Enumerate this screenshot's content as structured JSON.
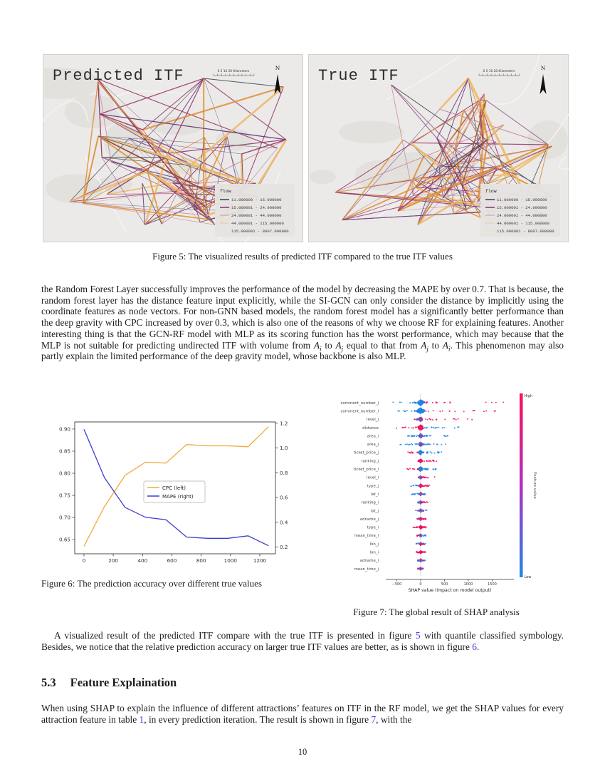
{
  "page": {
    "number": "10"
  },
  "link_color": "#3d3bde",
  "figure5": {
    "caption": "Figure 5: The visualized results of predicted ITF compared to the true ITF values",
    "panels": [
      {
        "title": "Predicted ITF"
      },
      {
        "title": "True ITF"
      }
    ],
    "scalebar_label": "0  5  10        20 Kilometers",
    "north_label": "N",
    "legend": {
      "title": "flow",
      "items": [
        {
          "label": "11.000000 - 15.000000",
          "color": "#4b4852"
        },
        {
          "label": "15.000001 - 24.000000",
          "color": "#7c4080"
        },
        {
          "label": "24.000001 - 44.000000",
          "color": "#d49396"
        },
        {
          "label": "44.000001 - 115.000000",
          "color": "#eec994"
        },
        {
          "label": "115.000001 - 8007.000000",
          "color": "#f3dfae"
        }
      ]
    },
    "line_palette": [
      {
        "color": "#45424e",
        "w": 0.7,
        "weight": 0.2
      },
      {
        "color": "#6f3d85",
        "w": 0.9,
        "weight": 0.22
      },
      {
        "color": "#99356b",
        "w": 1.1,
        "weight": 0.2
      },
      {
        "color": "#c87f92",
        "w": 0.8,
        "weight": 0.12
      },
      {
        "color": "#e0913a",
        "w": 1.6,
        "weight": 0.16
      },
      {
        "color": "#f0b96a",
        "w": 2.4,
        "weight": 0.1
      }
    ]
  },
  "paragraph1": {
    "segments": [
      {
        "t": "the Random Forest Layer successfully improves the performance of the model by decreasing the MAPE by over 0.7. That is because, the random forest layer has the distance feature input explicitly, while the SI-GCN can only consider the distance by implicitly using the coordinate features as node vectors. For non-GNN based models, the random forest model has a significantly better performance than the deep gravity with CPC increased by over 0.3, which is also one of the reasons of why we choose RF for explaining features. Another interesting thing is that the GCN-RF model with MLP as its scoring function has the worst performance, which may because that the MLP is not suitable for predicting undirected ITF with volume from "
      },
      {
        "t": "A",
        "sub": "i",
        "type": "var"
      },
      {
        "t": " to "
      },
      {
        "t": "A",
        "sub": "j",
        "type": "var"
      },
      {
        "t": " equal to that from "
      },
      {
        "t": "A",
        "sub": "j",
        "type": "var"
      },
      {
        "t": " to "
      },
      {
        "t": "A",
        "sub": "i",
        "type": "var"
      },
      {
        "t": ". This phenomenon may also partly explain the limited performance of the deep gravity model, whose backbone is also MLP."
      }
    ]
  },
  "figure6": {
    "caption": "Figure 6: The prediction accuracy over different true values"
  },
  "figure7": {
    "caption": "Figure 7: The global result of SHAP analysis"
  },
  "paragraph2": {
    "segments": [
      {
        "t": "A visualized result of the predicted ITF compare with the true ITF is presented in figure "
      },
      {
        "t": "5",
        "type": "link"
      },
      {
        "t": " with quantile classified symbology. Besides, we notice that the relative prediction accuracy on larger true ITF values are better, as is shown in figure "
      },
      {
        "t": "6",
        "type": "link"
      },
      {
        "t": "."
      }
    ]
  },
  "section": {
    "number": "5.3",
    "title": "Feature Explaination"
  },
  "paragraph3": {
    "segments": [
      {
        "t": "When using SHAP to explain the influence of different attractions’ features on ITF in the RF model, we get the SHAP values for every attraction feature in table "
      },
      {
        "t": "1",
        "type": "link"
      },
      {
        "t": ", in every prediction iteration.  The result is shown in figure "
      },
      {
        "t": "7",
        "type": "link"
      },
      {
        "t": ", with the"
      }
    ]
  },
  "chart_data": [
    {
      "id": "fig6",
      "type": "line",
      "title": "",
      "x": [
        0,
        140,
        280,
        420,
        560,
        700,
        840,
        980,
        1120,
        1260
      ],
      "series": [
        {
          "name": "CPC (left)",
          "axis": "left",
          "color": "#f2a93b",
          "values": [
            0.635,
            0.725,
            0.795,
            0.825,
            0.823,
            0.865,
            0.862,
            0.862,
            0.86,
            0.905
          ]
        },
        {
          "name": "MAPE (right)",
          "axis": "right",
          "color": "#3b3ecf",
          "values": [
            1.15,
            0.76,
            0.52,
            0.44,
            0.42,
            0.28,
            0.27,
            0.27,
            0.29,
            0.21
          ]
        }
      ],
      "x_ticks": [
        0,
        200,
        400,
        600,
        800,
        1000,
        1200
      ],
      "left_ticks": [
        0.65,
        0.7,
        0.75,
        0.8,
        0.85,
        0.9
      ],
      "right_ticks": [
        0.2,
        0.4,
        0.6,
        0.8,
        1.0,
        1.2
      ],
      "xlim": [
        -63,
        1307
      ],
      "left_ylim": [
        0.618,
        0.916
      ],
      "right_ylim": [
        0.145,
        1.21
      ],
      "grid": false,
      "legend_position": "center"
    },
    {
      "id": "fig7",
      "type": "scatter",
      "variant": "shap_beeswarm",
      "xlabel": "SHAP value (impact on model output)",
      "x_ticks": [
        -500,
        0,
        500,
        1000,
        1500
      ],
      "xlim": [
        -680,
        1900
      ],
      "colorbar": {
        "label": "Feature value",
        "high_label": "High",
        "low_label": "Low",
        "high_color": "#ff0d57",
        "low_color": "#1e88e5"
      },
      "features": [
        {
          "name": "comment_number_j",
          "neg": -620,
          "pos": 1800,
          "blob": 70,
          "negC": "b",
          "posC": "r",
          "blobC": "b"
        },
        {
          "name": "comment_number_i",
          "neg": -560,
          "pos": 1700,
          "blob": 75,
          "negC": "b",
          "posC": "r",
          "blobC": "b"
        },
        {
          "name": "level_j",
          "neg": -130,
          "pos": 1150,
          "blob": 40,
          "negC": "m",
          "posC": "r",
          "blobC": "m"
        },
        {
          "name": "distance",
          "neg": -520,
          "pos": 950,
          "blob": 60,
          "negC": "r",
          "posC": "b",
          "blobC": "r"
        },
        {
          "name": "area_i",
          "neg": -300,
          "pos": 620,
          "blob": 40,
          "negC": "b",
          "posC": "b",
          "blobC": "m"
        },
        {
          "name": "area_j",
          "neg": -480,
          "pos": 570,
          "blob": 40,
          "negC": "b",
          "posC": "b",
          "blobC": "m"
        },
        {
          "name": "ticket_price_j",
          "neg": -290,
          "pos": 470,
          "blob": 40,
          "negC": "r",
          "posC": "b",
          "blobC": "b"
        },
        {
          "name": "ranking_j",
          "neg": -70,
          "pos": 420,
          "blob": 28,
          "negC": "r",
          "posC": "r",
          "blobC": "r"
        },
        {
          "name": "ticket_price_i",
          "neg": -290,
          "pos": 340,
          "blob": 45,
          "negC": "r",
          "posC": "b",
          "blobC": "b"
        },
        {
          "name": "level_i",
          "neg": -60,
          "pos": 300,
          "blob": 20,
          "negC": "m",
          "posC": "r",
          "blobC": "m"
        },
        {
          "name": "type_j",
          "neg": -230,
          "pos": 190,
          "blob": 25,
          "negC": "b",
          "posC": "r",
          "blobC": "r"
        },
        {
          "name": "lat_i",
          "neg": -210,
          "pos": 110,
          "blob": 20,
          "negC": "b",
          "posC": "m",
          "blobC": "m"
        },
        {
          "name": "ranking_i",
          "neg": -70,
          "pos": 160,
          "blob": 18,
          "negC": "m",
          "posC": "r",
          "blobC": "m"
        },
        {
          "name": "lat_j",
          "neg": -100,
          "pos": 130,
          "blob": 18,
          "negC": "m",
          "posC": "m",
          "blobC": "m"
        },
        {
          "name": "adname_j",
          "neg": -90,
          "pos": 115,
          "blob": 16,
          "negC": "m",
          "posC": "r",
          "blobC": "m"
        },
        {
          "name": "type_i",
          "neg": -160,
          "pos": 150,
          "blob": 22,
          "negC": "r",
          "posC": "r",
          "blobC": "r"
        },
        {
          "name": "mean_time_i",
          "neg": -80,
          "pos": 115,
          "blob": 15,
          "negC": "m",
          "posC": "b",
          "blobC": "m"
        },
        {
          "name": "lon_j",
          "neg": -95,
          "pos": 105,
          "blob": 15,
          "negC": "m",
          "posC": "m",
          "blobC": "r"
        },
        {
          "name": "lon_i",
          "neg": -95,
          "pos": 115,
          "blob": 16,
          "negC": "r",
          "posC": "r",
          "blobC": "r"
        },
        {
          "name": "adname_i",
          "neg": -65,
          "pos": 95,
          "blob": 13,
          "negC": "m",
          "posC": "m",
          "blobC": "m"
        },
        {
          "name": "mean_time_j",
          "neg": -65,
          "pos": 95,
          "blob": 13,
          "negC": "m",
          "posC": "m",
          "blobC": "m"
        }
      ]
    }
  ]
}
